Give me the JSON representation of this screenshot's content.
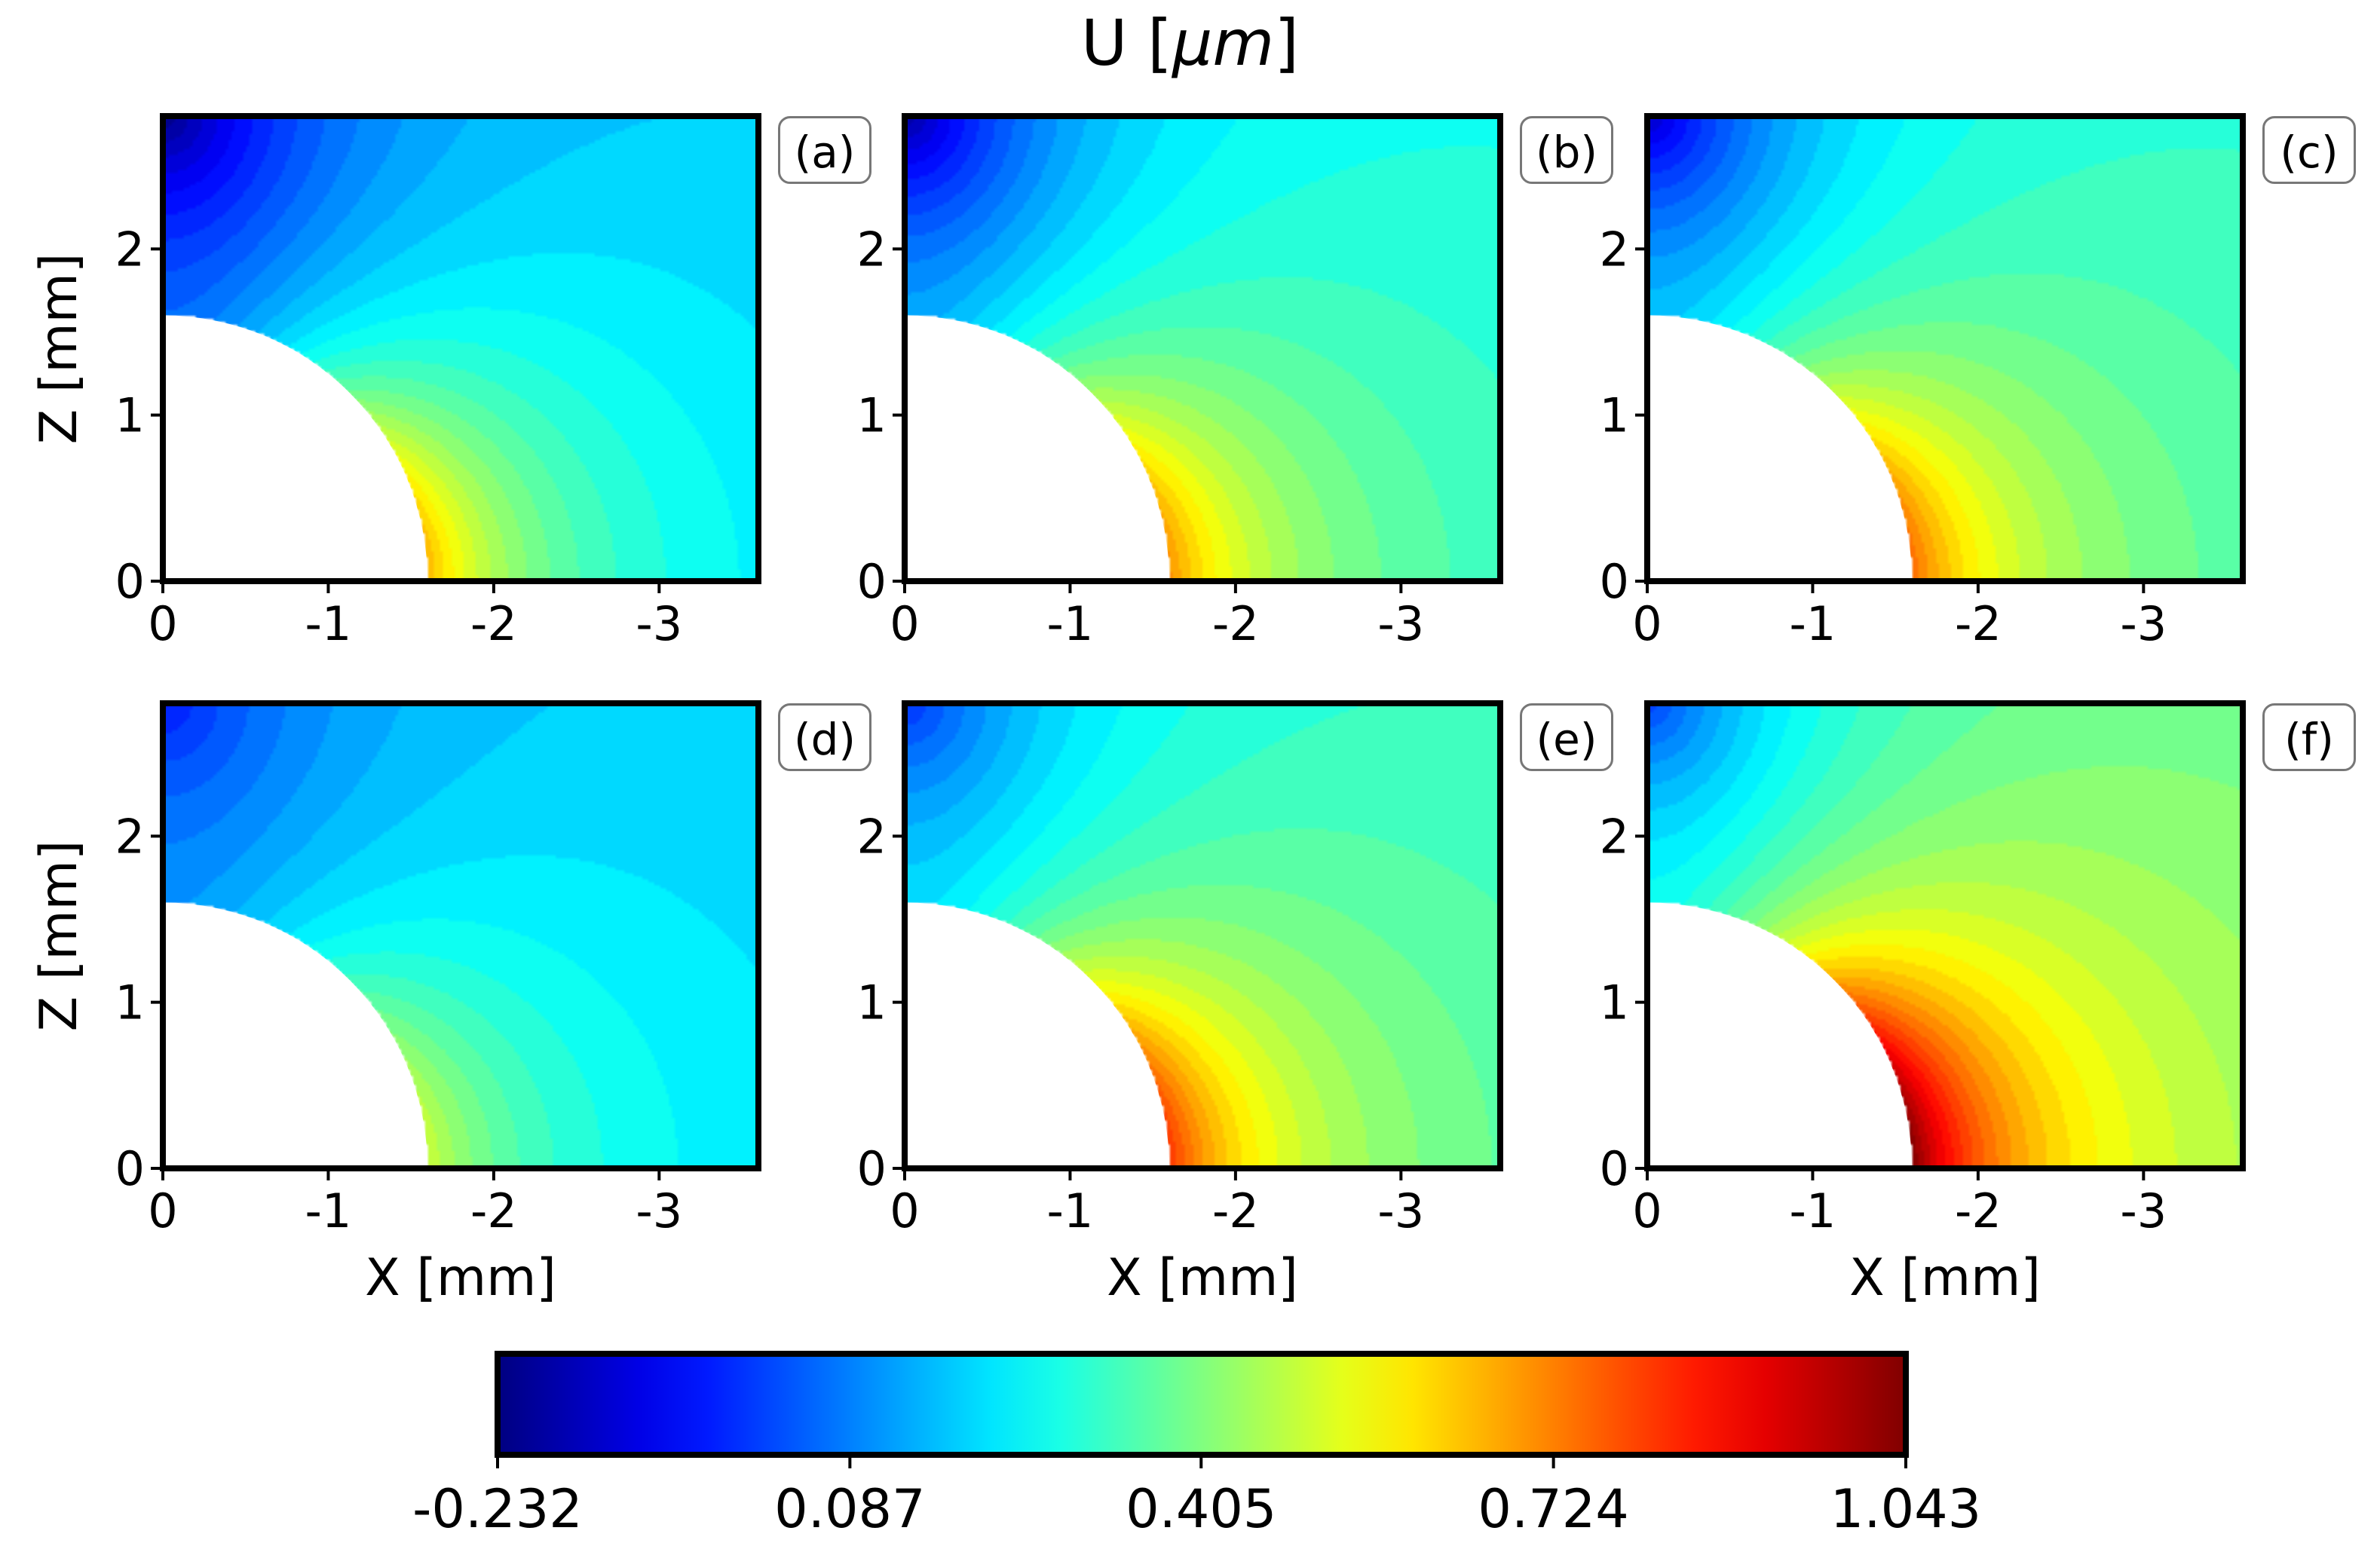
{
  "title": "U [μm]",
  "title_parts": {
    "var": "U",
    "unit_open": "[",
    "unit": "μm",
    "unit_close": "]"
  },
  "chart_data": {
    "type": "heatmap",
    "title": "U [μm]",
    "colormap": "jet",
    "colorbar": {
      "range": [
        -0.232,
        1.043
      ],
      "ticks": [
        -0.232,
        0.087,
        0.405,
        0.724,
        1.043
      ],
      "tick_labels": [
        "-0.232",
        "0.087",
        "0.405",
        "0.724",
        "1.043"
      ],
      "placement": "bottom"
    },
    "x_axis": {
      "label": "X [mm]",
      "range": [
        0,
        -3.6
      ],
      "ticks": [
        0,
        -1,
        -2,
        -3
      ],
      "tick_labels": [
        "0",
        "-1",
        "-2",
        "-3"
      ]
    },
    "z_axis": {
      "label": "Z [mm]",
      "range": [
        0,
        2.8
      ],
      "ticks": [
        0,
        1,
        2
      ],
      "tick_labels": [
        "0",
        "1",
        "2"
      ]
    },
    "hole_radius_mm": 1.6,
    "panels": [
      {
        "label": "(a)",
        "peak": 0.66,
        "far": 0.155,
        "corner_min": -0.232
      },
      {
        "label": "(b)",
        "peak": 0.7,
        "far": 0.25,
        "corner_min": -0.2
      },
      {
        "label": "(c)",
        "peak": 0.75,
        "far": 0.28,
        "corner_min": -0.15
      },
      {
        "label": "(d)",
        "peak": 0.5,
        "far": 0.17,
        "corner_min": -0.05
      },
      {
        "label": "(e)",
        "peak": 0.82,
        "far": 0.28,
        "corner_min": -0.02
      },
      {
        "label": "(f)",
        "peak": 1.043,
        "far": 0.35,
        "corner_min": 0.0
      }
    ]
  }
}
